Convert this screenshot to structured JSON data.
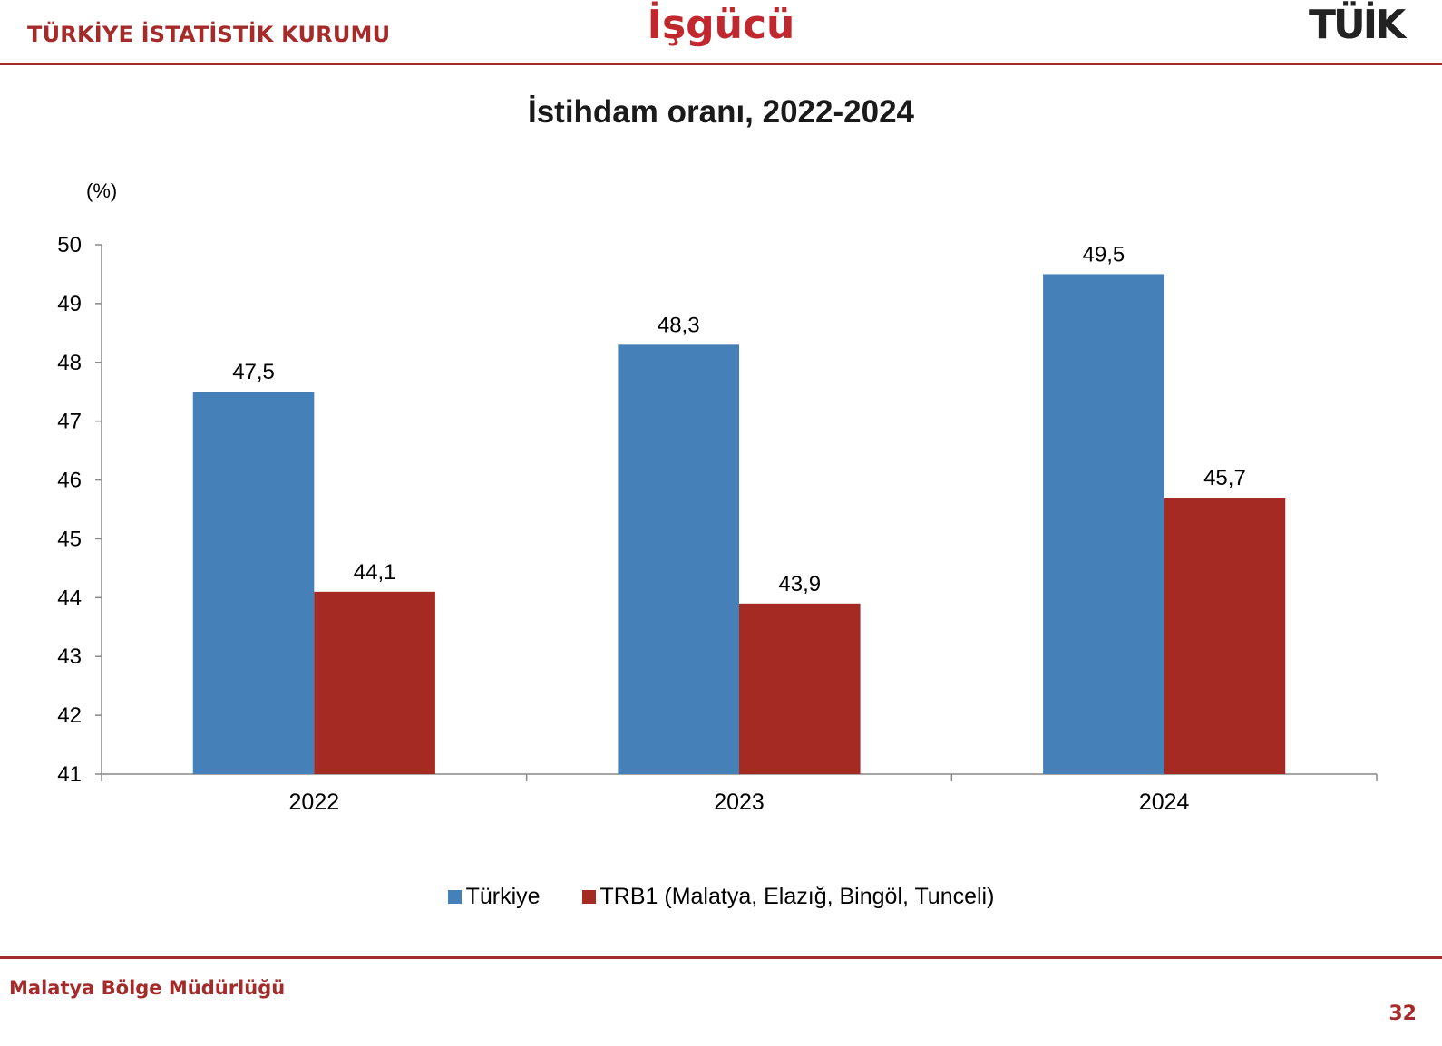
{
  "header": {
    "org_name": "TÜRKİYE İSTATİSTİK KURUMU",
    "slide_title": "İşgücü",
    "logo_text": "TÜİK"
  },
  "footer": {
    "office": "Malatya Bölge Müdürlüğü",
    "page_number": "32"
  },
  "colors": {
    "brand": "#a52a2a",
    "turkiye": "#4580b9",
    "trb1": "#a42a23"
  },
  "chart_data": {
    "type": "bar",
    "title": "İstihdam oranı, 2022-2024",
    "ylabel": "(%)",
    "xlabel": "",
    "categories": [
      "2022",
      "2023",
      "2024"
    ],
    "series": [
      {
        "name": "Türkiye",
        "values": [
          47.5,
          48.3,
          49.5
        ],
        "labels": [
          "47,5",
          "48,3",
          "49,5"
        ]
      },
      {
        "name": "TRB1 (Malatya, Elazığ, Bingöl, Tunceli)",
        "values": [
          44.1,
          43.9,
          45.7
        ],
        "labels": [
          "44,1",
          "43,9",
          "45,7"
        ]
      }
    ],
    "ylim": [
      41,
      50
    ],
    "yticks": [
      41,
      42,
      43,
      44,
      45,
      46,
      47,
      48,
      49,
      50
    ],
    "grid": false,
    "legend": "bottom"
  }
}
